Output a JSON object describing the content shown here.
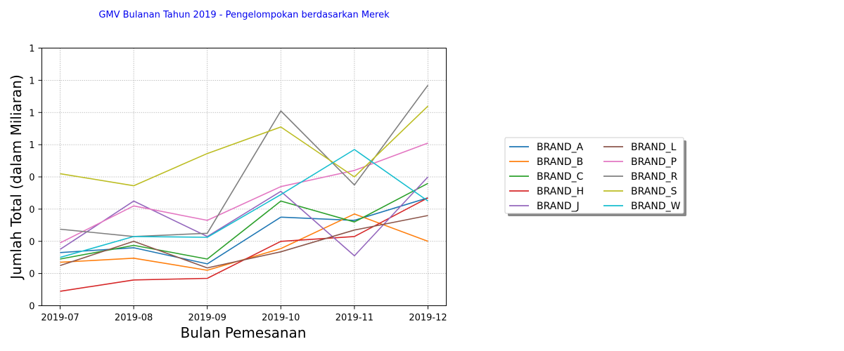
{
  "chart_data": {
    "type": "line",
    "title": "GMV Bulanan Tahun 2019 - Pengelompokan berdasarkan Merek",
    "xlabel": "Bulan Pemesanan",
    "ylabel": "Jumlah Total (dalam Miliaran)",
    "x": [
      "2019-07",
      "2019-08",
      "2019-09",
      "2019-10",
      "2019-11",
      "2019-12"
    ],
    "y_tick_labels": [
      "0",
      "0",
      "0",
      "0",
      "0",
      "1",
      "1",
      "1",
      "1"
    ],
    "ylim": [
      0,
      1.6
    ],
    "grid": true,
    "legend_position": "right",
    "series": [
      {
        "name": "BRAND_A",
        "color": "#1f77b4",
        "values": [
          0.33,
          0.36,
          0.26,
          0.55,
          0.53,
          0.67
        ]
      },
      {
        "name": "BRAND_B",
        "color": "#ff7f0e",
        "values": [
          0.27,
          0.295,
          0.22,
          0.355,
          0.57,
          0.4
        ]
      },
      {
        "name": "BRAND_C",
        "color": "#2ca02c",
        "values": [
          0.29,
          0.375,
          0.29,
          0.65,
          0.52,
          0.76
        ]
      },
      {
        "name": "BRAND_H",
        "color": "#d62728",
        "values": [
          0.09,
          0.16,
          0.17,
          0.4,
          0.43,
          0.67
        ]
      },
      {
        "name": "BRAND_J",
        "color": "#9467bd",
        "values": [
          0.35,
          0.65,
          0.43,
          0.71,
          0.31,
          0.8
        ]
      },
      {
        "name": "BRAND_L",
        "color": "#8c564b",
        "values": [
          0.25,
          0.4,
          0.235,
          0.335,
          0.47,
          0.56
        ]
      },
      {
        "name": "BRAND_P",
        "color": "#e377c2",
        "values": [
          0.39,
          0.62,
          0.53,
          0.74,
          0.84,
          1.01
        ]
      },
      {
        "name": "BRAND_R",
        "color": "#7f7f7f",
        "values": [
          0.475,
          0.43,
          0.45,
          1.21,
          0.75,
          1.37
        ]
      },
      {
        "name": "BRAND_S",
        "color": "#bcbd22",
        "values": [
          0.82,
          0.745,
          0.945,
          1.11,
          0.8,
          1.24
        ]
      },
      {
        "name": "BRAND_W",
        "color": "#17becf",
        "values": [
          0.3,
          0.43,
          0.425,
          0.69,
          0.97,
          0.65
        ]
      }
    ]
  }
}
